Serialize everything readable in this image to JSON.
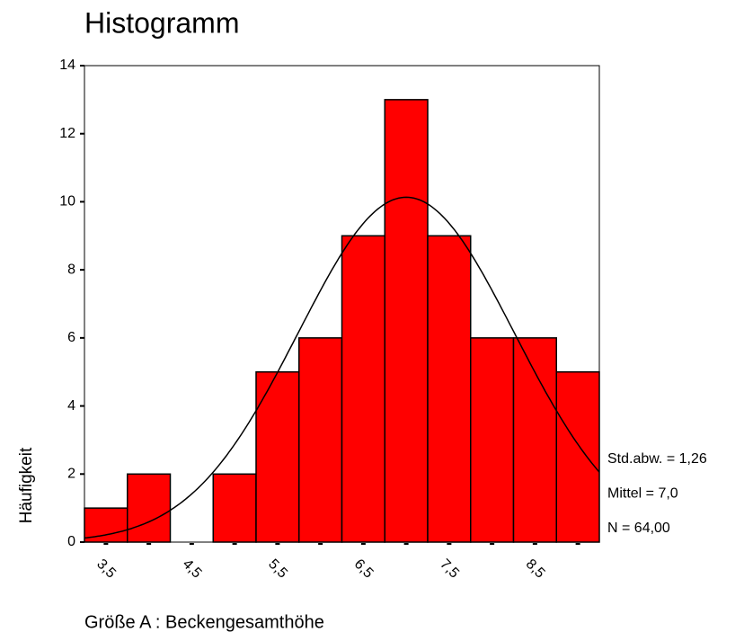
{
  "chart_data": {
    "type": "histogram",
    "title": "Histogramm",
    "x_label": "Größe A : Beckengesamthöhe",
    "y_label": "Häufigkeit",
    "bins": [
      3.25,
      3.75,
      4.25,
      4.75,
      5.25,
      5.75,
      6.25,
      6.75,
      7.25,
      7.75,
      8.25,
      8.75,
      9.25
    ],
    "values": [
      1,
      2,
      0,
      2,
      5,
      6,
      9,
      13,
      9,
      6,
      6,
      5
    ],
    "color": "#ff0000",
    "xlim": [
      3.25,
      9.25
    ],
    "xticks": [
      {
        "value": 3.5,
        "label": "3,5"
      },
      {
        "value": 4.5,
        "label": "4,5"
      },
      {
        "value": 5.5,
        "label": "5,5"
      },
      {
        "value": 6.5,
        "label": "6,5"
      },
      {
        "value": 7.5,
        "label": "7,5"
      },
      {
        "value": 8.5,
        "label": "8,5"
      }
    ],
    "xminor_ticks": [
      4,
      5,
      6,
      7,
      8,
      9
    ],
    "ylim": [
      0,
      14
    ],
    "yticks": [
      0,
      2,
      4,
      6,
      8,
      10,
      12,
      14
    ],
    "stats": [
      {
        "value": 1.26,
        "label": "Std.abw. = 1,26"
      },
      {
        "value": 7.0,
        "label": "Mittel = 7,0"
      },
      {
        "value": 64,
        "label": "N = 64,00"
      }
    ]
  }
}
